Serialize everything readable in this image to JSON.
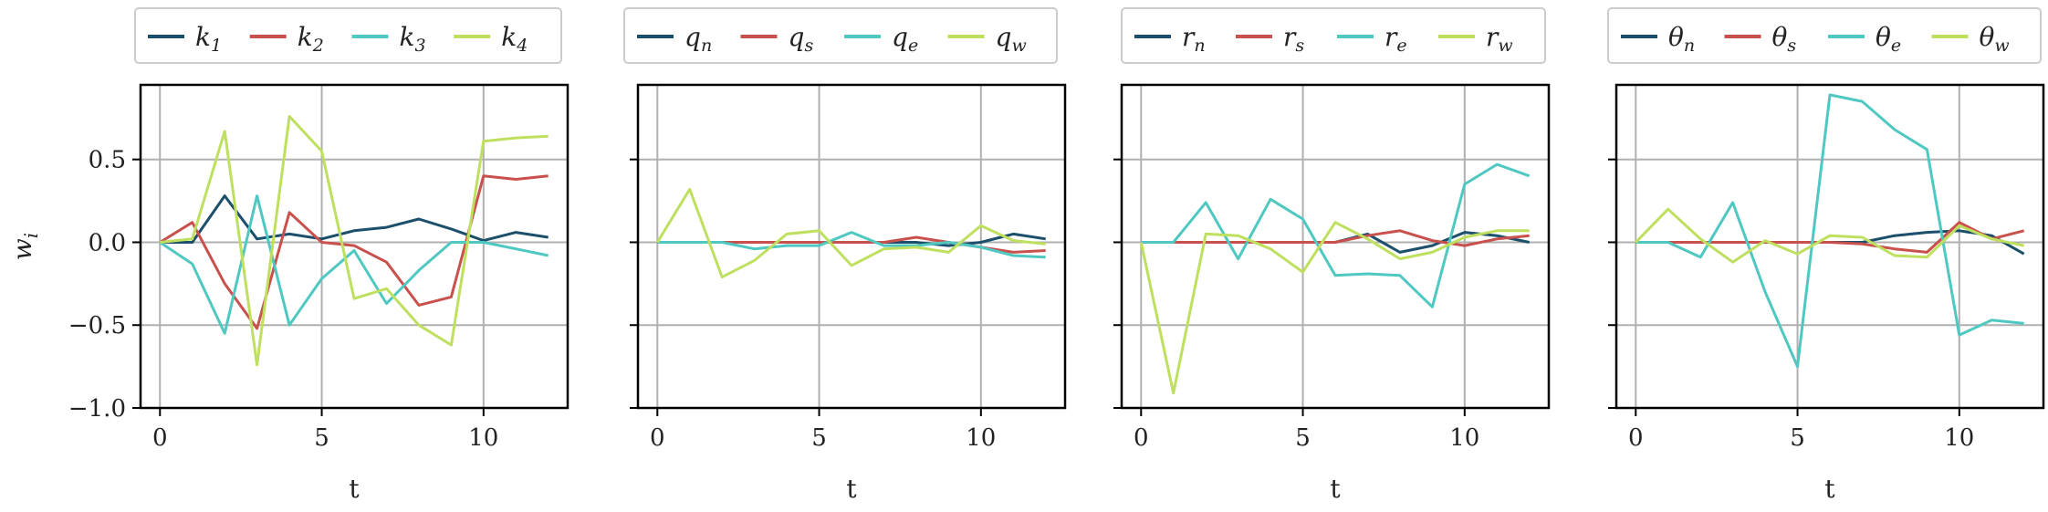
{
  "chart_data": [
    {
      "type": "line",
      "title": "",
      "xlabel": "t",
      "ylabel": "w_i",
      "xlim": [
        -0.6,
        12.6
      ],
      "ylim": [
        -1.0,
        0.95
      ],
      "xticks": [
        "0",
        "5",
        "10"
      ],
      "yticks": [
        "0.5",
        "0.0",
        "−0.5",
        "−1.0"
      ],
      "grid": true,
      "legend_position": "top",
      "x": [
        0,
        1,
        2,
        3,
        4,
        5,
        6,
        7,
        8,
        9,
        10,
        11,
        12
      ],
      "series": [
        {
          "name": "k1",
          "base": "k",
          "sub": "1",
          "color": "#1b4f6b",
          "values": [
            0.0,
            0.0,
            0.28,
            0.02,
            0.05,
            0.02,
            0.07,
            0.09,
            0.14,
            0.08,
            0.01,
            0.06,
            0.03
          ]
        },
        {
          "name": "k2",
          "base": "k",
          "sub": "2",
          "color": "#c9514d",
          "values": [
            0.0,
            0.12,
            -0.25,
            -0.52,
            0.18,
            0.0,
            -0.02,
            -0.12,
            -0.38,
            -0.33,
            0.4,
            0.38,
            0.4
          ]
        },
        {
          "name": "k3",
          "base": "k",
          "sub": "3",
          "color": "#4ec8c0",
          "values": [
            0.0,
            -0.13,
            -0.55,
            0.28,
            -0.5,
            -0.22,
            -0.05,
            -0.37,
            -0.17,
            0.0,
            0.0,
            -0.04,
            -0.08
          ]
        },
        {
          "name": "k4",
          "base": "k",
          "sub": "4",
          "color": "#bfdf5f",
          "values": [
            0.0,
            0.02,
            0.67,
            -0.74,
            0.76,
            0.55,
            -0.34,
            -0.28,
            -0.5,
            -0.62,
            0.61,
            0.63,
            0.64
          ]
        }
      ]
    },
    {
      "type": "line",
      "title": "",
      "xlabel": "t",
      "ylabel": "",
      "xlim": [
        -0.6,
        12.6
      ],
      "ylim": [
        -1.0,
        0.95
      ],
      "xticks": [
        "0",
        "5",
        "10"
      ],
      "yticks": [],
      "grid": true,
      "legend_position": "top",
      "x": [
        0,
        1,
        2,
        3,
        4,
        5,
        6,
        7,
        8,
        9,
        10,
        11,
        12
      ],
      "series": [
        {
          "name": "qn",
          "base": "q",
          "sub": "n",
          "color": "#1b4f6b",
          "values": [
            0.0,
            0.0,
            0.0,
            0.0,
            0.0,
            0.0,
            0.0,
            0.0,
            0.0,
            -0.02,
            0.0,
            0.05,
            0.02
          ]
        },
        {
          "name": "qs",
          "base": "q",
          "sub": "s",
          "color": "#c9514d",
          "values": [
            0.0,
            0.0,
            0.0,
            0.0,
            0.0,
            0.0,
            0.0,
            0.0,
            0.03,
            0.0,
            -0.03,
            -0.06,
            -0.05
          ]
        },
        {
          "name": "qe",
          "base": "q",
          "sub": "e",
          "color": "#4ec8c0",
          "values": [
            0.0,
            0.0,
            0.0,
            -0.04,
            -0.02,
            -0.02,
            0.06,
            -0.02,
            -0.02,
            0.0,
            -0.03,
            -0.08,
            -0.09
          ]
        },
        {
          "name": "qw",
          "base": "q",
          "sub": "w",
          "color": "#bfdf5f",
          "values": [
            0.0,
            0.32,
            -0.21,
            -0.11,
            0.05,
            0.07,
            -0.14,
            -0.04,
            -0.03,
            -0.06,
            0.1,
            0.01,
            -0.01
          ]
        }
      ]
    },
    {
      "type": "line",
      "title": "",
      "xlabel": "t",
      "ylabel": "",
      "xlim": [
        -0.6,
        12.6
      ],
      "ylim": [
        -1.0,
        0.95
      ],
      "xticks": [
        "0",
        "5",
        "10"
      ],
      "yticks": [],
      "grid": true,
      "legend_position": "top",
      "x": [
        0,
        1,
        2,
        3,
        4,
        5,
        6,
        7,
        8,
        9,
        10,
        11,
        12
      ],
      "series": [
        {
          "name": "rn",
          "base": "r",
          "sub": "n",
          "color": "#1b4f6b",
          "values": [
            0.0,
            0.0,
            0.0,
            0.0,
            0.0,
            0.0,
            0.0,
            0.05,
            -0.06,
            -0.02,
            0.06,
            0.04,
            0.0
          ]
        },
        {
          "name": "rs",
          "base": "r",
          "sub": "s",
          "color": "#c9514d",
          "values": [
            0.0,
            0.0,
            0.0,
            0.0,
            0.0,
            0.0,
            0.0,
            0.04,
            0.07,
            0.01,
            -0.02,
            0.02,
            0.04
          ]
        },
        {
          "name": "re",
          "base": "r",
          "sub": "e",
          "color": "#4ec8c0",
          "values": [
            0.0,
            0.0,
            0.24,
            -0.1,
            0.26,
            0.14,
            -0.2,
            -0.19,
            -0.2,
            -0.39,
            0.35,
            0.47,
            0.4
          ]
        },
        {
          "name": "rw",
          "base": "r",
          "sub": "w",
          "color": "#bfdf5f",
          "values": [
            0.0,
            -0.91,
            0.05,
            0.04,
            -0.04,
            -0.18,
            0.12,
            0.02,
            -0.1,
            -0.06,
            0.03,
            0.07,
            0.07
          ]
        }
      ]
    },
    {
      "type": "line",
      "title": "",
      "xlabel": "t",
      "ylabel": "",
      "xlim": [
        -0.6,
        12.6
      ],
      "ylim": [
        -1.0,
        0.95
      ],
      "xticks": [
        "0",
        "5",
        "10"
      ],
      "yticks": [],
      "grid": true,
      "legend_position": "top",
      "x": [
        0,
        1,
        2,
        3,
        4,
        5,
        6,
        7,
        8,
        9,
        10,
        11,
        12
      ],
      "series": [
        {
          "name": "θn",
          "base": "θ",
          "sub": "n",
          "color": "#1b4f6b",
          "values": [
            0.0,
            0.0,
            0.0,
            0.0,
            0.0,
            0.0,
            0.0,
            0.0,
            0.04,
            0.06,
            0.07,
            0.04,
            -0.07
          ]
        },
        {
          "name": "θs",
          "base": "θ",
          "sub": "s",
          "color": "#c9514d",
          "values": [
            0.0,
            0.0,
            0.0,
            0.0,
            0.0,
            0.0,
            0.0,
            -0.01,
            -0.04,
            -0.06,
            0.12,
            0.02,
            0.07
          ]
        },
        {
          "name": "θe",
          "base": "θ",
          "sub": "e",
          "color": "#4ec8c0",
          "values": [
            0.0,
            0.0,
            -0.09,
            0.24,
            -0.3,
            -0.75,
            0.89,
            0.85,
            0.68,
            0.56,
            -0.56,
            -0.47,
            -0.49
          ]
        },
        {
          "name": "θw",
          "base": "θ",
          "sub": "w",
          "color": "#bfdf5f",
          "values": [
            0.0,
            0.2,
            0.02,
            -0.12,
            0.01,
            -0.07,
            0.04,
            0.03,
            -0.08,
            -0.09,
            0.1,
            0.02,
            -0.02
          ]
        }
      ]
    }
  ]
}
